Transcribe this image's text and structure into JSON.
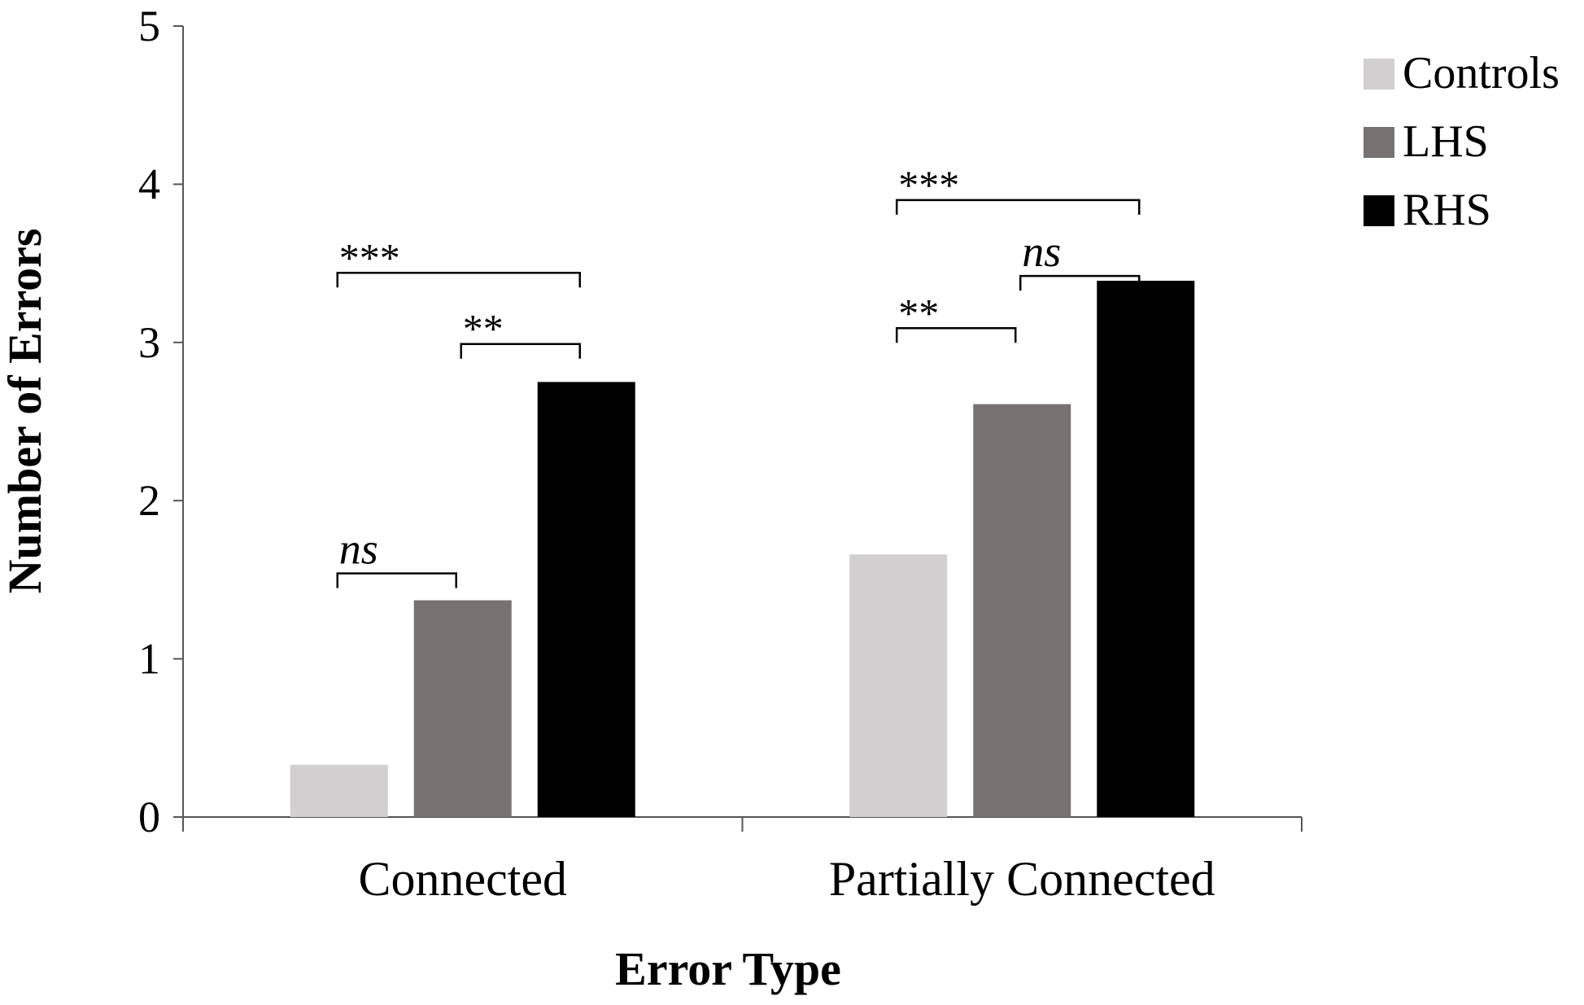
{
  "chart_data": {
    "type": "bar",
    "title": "",
    "xlabel": "Error Type",
    "ylabel": "Number of Errors",
    "categories": [
      "Connected",
      "Partially Connected"
    ],
    "series": [
      {
        "name": "Controls",
        "values": [
          0.33,
          1.66
        ],
        "color": "#d1cfcf"
      },
      {
        "name": "LHS",
        "values": [
          1.37,
          2.61
        ],
        "color": "#777271"
      },
      {
        "name": "RHS",
        "values": [
          2.75,
          3.39
        ],
        "color": "#000000"
      }
    ],
    "ylim": [
      0,
      5
    ],
    "yticks": [
      "0",
      "1",
      "2",
      "3",
      "4",
      "5"
    ],
    "grid": false,
    "legend": "top-right",
    "annotations": [
      {
        "text": "ns",
        "category": 0,
        "from_series": 0,
        "to_series": 1,
        "y": 1.54
      },
      {
        "text": "**",
        "category": 0,
        "from_series": 1,
        "to_series": 2,
        "y": 2.99
      },
      {
        "text": "***",
        "category": 0,
        "from_series": 0,
        "to_series": 2,
        "y": 3.44
      },
      {
        "text": "**",
        "category": 1,
        "from_series": 0,
        "to_series": 1,
        "y": 3.09
      },
      {
        "text": "ns",
        "category": 1,
        "from_series": 1,
        "to_series": 2,
        "y": 3.42
      },
      {
        "text": "***",
        "category": 1,
        "from_series": 0,
        "to_series": 2,
        "y": 3.9
      }
    ]
  }
}
